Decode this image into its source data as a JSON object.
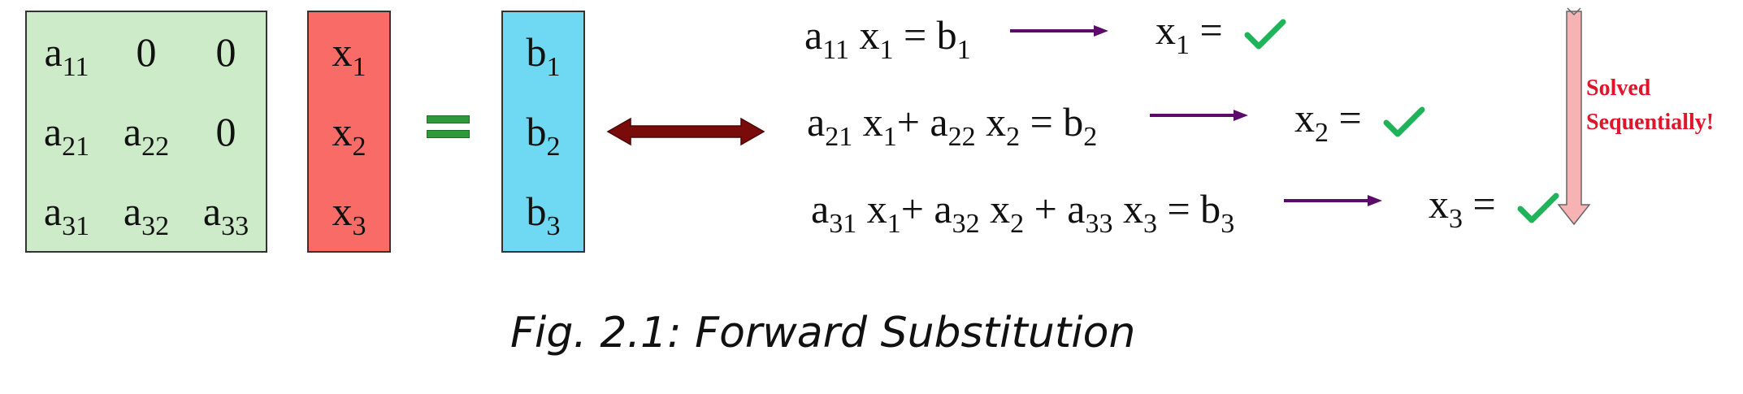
{
  "matrix_a": {
    "rows": [
      [
        {
          "base": "a",
          "sub": "11"
        },
        {
          "base": "0",
          "sub": ""
        },
        {
          "base": "0",
          "sub": ""
        }
      ],
      [
        {
          "base": "a",
          "sub": "21"
        },
        {
          "base": "a",
          "sub": "22"
        },
        {
          "base": "0",
          "sub": ""
        }
      ],
      [
        {
          "base": "a",
          "sub": "31"
        },
        {
          "base": "a",
          "sub": "32"
        },
        {
          "base": "a",
          "sub": "33"
        }
      ]
    ]
  },
  "vector_x": [
    {
      "base": "x",
      "sub": "1"
    },
    {
      "base": "x",
      "sub": "2"
    },
    {
      "base": "x",
      "sub": "3"
    }
  ],
  "vector_b": [
    {
      "base": "b",
      "sub": "1"
    },
    {
      "base": "b",
      "sub": "2"
    },
    {
      "base": "b",
      "sub": "3"
    }
  ],
  "equations": [
    [
      {
        "t": "a",
        "s": "11"
      },
      {
        "t": " x",
        "s": "1"
      },
      {
        "t": " = b",
        "s": "1"
      }
    ],
    [
      {
        "t": "a",
        "s": "21"
      },
      {
        "t": " x",
        "s": "1"
      },
      {
        "t": "+ a",
        "s": "22"
      },
      {
        "t": " x",
        "s": "2"
      },
      {
        "t": " = b",
        "s": "2"
      }
    ],
    [
      {
        "t": "a",
        "s": "31"
      },
      {
        "t": " x",
        "s": "1"
      },
      {
        "t": "+ a",
        "s": "32"
      },
      {
        "t": " x",
        "s": "2"
      },
      {
        "t": " + a",
        "s": "33"
      },
      {
        "t": " x",
        "s": "3"
      },
      {
        "t": " = b",
        "s": "3"
      }
    ]
  ],
  "results": [
    {
      "base": "x",
      "sub": "1",
      "eq": " ="
    },
    {
      "base": "x",
      "sub": "2",
      "eq": " ="
    },
    {
      "base": "x",
      "sub": "3",
      "eq": " ="
    }
  ],
  "note_lines": [
    "Solved",
    "Sequentially!"
  ],
  "caption": "Fig. 2.1: Forward Substitution",
  "colors": {
    "matrix_fill": "#cdebc8",
    "x_fill": "#f86b66",
    "b_fill": "#6fd8f2",
    "equals_green": "#2f9a3a",
    "double_arrow": "#7a0b0b",
    "step_arrow": "#5c0b6b",
    "check": "#1fb35a",
    "side_arrow": "#f7b3b3",
    "note_red": "#e0142a"
  }
}
